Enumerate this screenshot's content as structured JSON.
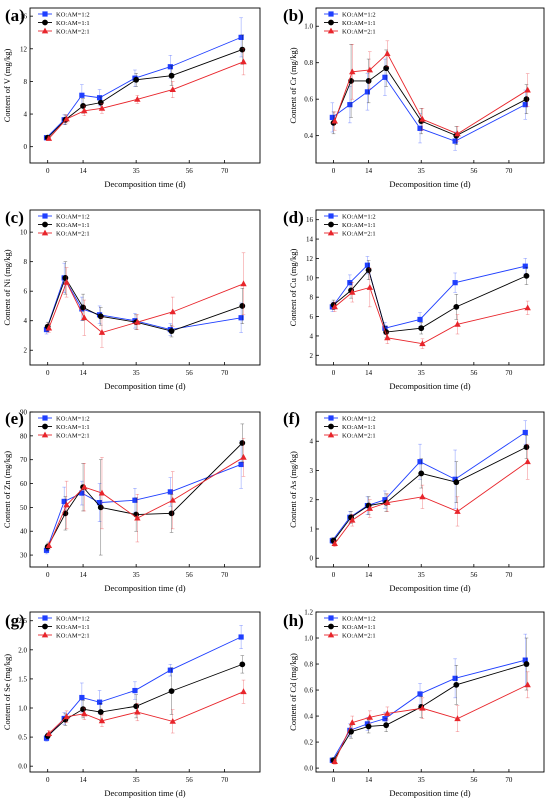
{
  "legend_labels": [
    "KO:AM=1:2",
    "KO:AM=1:1",
    "KO:AM=2:1"
  ],
  "series_colors": [
    "#1f3fff",
    "#000000",
    "#e8252b"
  ],
  "series_markers": [
    "square",
    "circle",
    "triangle"
  ],
  "chart_data": [
    {
      "panel": "(a)",
      "type": "line",
      "xlabel": "Decomposition time (d)",
      "ylabel": "Content of V (mg/kg)",
      "x": [
        0,
        7,
        14,
        21,
        35,
        49,
        77
      ],
      "xticks": [
        0,
        14,
        35,
        56,
        70
      ],
      "xlim": [
        -7,
        84
      ],
      "ylim": [
        -2,
        17
      ],
      "yticks": [
        0,
        4,
        8,
        12,
        16
      ],
      "series": [
        {
          "name": "KO:AM=1:2",
          "values": [
            1.1,
            3.3,
            6.3,
            6.0,
            8.4,
            9.8,
            13.4
          ],
          "err": [
            0.2,
            0.6,
            1.3,
            1.0,
            1.0,
            1.4,
            2.4
          ]
        },
        {
          "name": "KO:AM=1:1",
          "values": [
            1.1,
            3.3,
            5.0,
            5.4,
            8.2,
            8.7,
            11.9
          ],
          "err": [
            0.2,
            0.6,
            0.9,
            0.7,
            0.8,
            1.2,
            1.8
          ]
        },
        {
          "name": "KO:AM=2:1",
          "values": [
            1.0,
            3.4,
            4.4,
            4.7,
            5.8,
            7.0,
            10.4
          ],
          "err": [
            0.2,
            0.5,
            0.6,
            0.6,
            0.5,
            1.0,
            1.6
          ]
        }
      ]
    },
    {
      "panel": "(b)",
      "type": "line",
      "xlabel": "Decomposition time (d)",
      "ylabel": "Content of Cr (mg/kg)",
      "x": [
        0,
        7,
        14,
        21,
        35,
        49,
        77
      ],
      "xticks": [
        0,
        14,
        35,
        56,
        70
      ],
      "xlim": [
        -7,
        84
      ],
      "ylim": [
        0.25,
        1.1
      ],
      "yticks": [
        0.4,
        0.6,
        0.8,
        1.0
      ],
      "series": [
        {
          "name": "KO:AM=1:2",
          "values": [
            0.5,
            0.57,
            0.64,
            0.72,
            0.44,
            0.37,
            0.57
          ],
          "err": [
            0.08,
            0.1,
            0.1,
            0.1,
            0.08,
            0.05,
            0.08
          ]
        },
        {
          "name": "KO:AM=1:1",
          "values": [
            0.47,
            0.7,
            0.7,
            0.77,
            0.48,
            0.4,
            0.6
          ],
          "err": [
            0.06,
            0.2,
            0.12,
            0.1,
            0.07,
            0.05,
            0.08
          ]
        },
        {
          "name": "KO:AM=2:1",
          "values": [
            0.48,
            0.75,
            0.76,
            0.85,
            0.49,
            0.41,
            0.65
          ],
          "err": [
            0.05,
            0.15,
            0.1,
            0.07,
            0.06,
            0.04,
            0.09
          ]
        }
      ]
    },
    {
      "panel": "(c)",
      "type": "line",
      "xlabel": "Decomposition time (d)",
      "ylabel": "Content of Ni (mg/kg)",
      "x": [
        0,
        7,
        14,
        21,
        35,
        49,
        77
      ],
      "xticks": [
        0,
        14,
        35,
        56,
        70
      ],
      "xlim": [
        -7,
        84
      ],
      "ylim": [
        1,
        11.5
      ],
      "yticks": [
        2,
        4,
        6,
        8,
        10
      ],
      "series": [
        {
          "name": "KO:AM=1:2",
          "values": [
            3.4,
            6.9,
            4.8,
            4.4,
            4.0,
            3.4,
            4.2
          ],
          "err": [
            0.3,
            1.0,
            0.8,
            0.6,
            0.5,
            0.4,
            1.0
          ]
        },
        {
          "name": "KO:AM=1:1",
          "values": [
            3.6,
            6.9,
            4.9,
            4.3,
            3.9,
            3.3,
            5.0
          ],
          "err": [
            0.3,
            1.1,
            0.9,
            0.6,
            0.5,
            0.4,
            1.2
          ]
        },
        {
          "name": "KO:AM=2:1",
          "values": [
            3.5,
            6.6,
            4.2,
            3.2,
            3.9,
            4.6,
            6.5
          ],
          "err": [
            0.3,
            1.0,
            1.2,
            1.0,
            0.5,
            1.0,
            2.1
          ]
        }
      ]
    },
    {
      "panel": "(d)",
      "type": "line",
      "xlabel": "Decomposition time (d)",
      "ylabel": "Content of Cu (mg/kg)",
      "x": [
        0,
        7,
        14,
        21,
        35,
        49,
        77
      ],
      "xticks": [
        0,
        14,
        35,
        56,
        70
      ],
      "xlim": [
        -7,
        84
      ],
      "ylim": [
        1,
        17
      ],
      "yticks": [
        2,
        4,
        6,
        8,
        10,
        12,
        14,
        16
      ],
      "series": [
        {
          "name": "KO:AM=1:2",
          "values": [
            7.0,
            9.5,
            11.3,
            4.8,
            5.7,
            9.5,
            11.2
          ],
          "err": [
            0.5,
            0.8,
            0.9,
            0.6,
            0.7,
            1.0,
            0.8
          ]
        },
        {
          "name": "KO:AM=1:1",
          "values": [
            7.2,
            8.7,
            10.8,
            4.4,
            4.8,
            7.0,
            10.2
          ],
          "err": [
            0.5,
            0.8,
            1.0,
            0.6,
            0.6,
            1.3,
            0.9
          ]
        },
        {
          "name": "KO:AM=2:1",
          "values": [
            7.0,
            8.5,
            9.0,
            3.8,
            3.2,
            5.2,
            6.9
          ],
          "err": [
            0.5,
            1.0,
            2.0,
            0.6,
            0.5,
            1.0,
            0.7
          ]
        }
      ]
    },
    {
      "panel": "(e)",
      "type": "line",
      "xlabel": "Decomposition time (d)",
      "ylabel": "Content of Zn (mg/kg)",
      "x": [
        0,
        7,
        14,
        21,
        35,
        49,
        77
      ],
      "xticks": [
        0,
        14,
        35,
        56,
        70
      ],
      "xlim": [
        -7,
        84
      ],
      "ylim": [
        25,
        90
      ],
      "yticks": [
        30,
        40,
        50,
        60,
        70,
        80,
        90
      ],
      "series": [
        {
          "name": "KO:AM=1:2",
          "values": [
            32.0,
            52.5,
            56.0,
            52.0,
            53.0,
            56.5,
            68.0
          ],
          "err": [
            1.5,
            6.0,
            5.0,
            8.0,
            5.0,
            6.0,
            10.0
          ]
        },
        {
          "name": "KO:AM=1:1",
          "values": [
            33.5,
            47.5,
            58.5,
            50.0,
            47.0,
            47.5,
            77.0
          ],
          "err": [
            1.5,
            7.0,
            10.0,
            20.0,
            7.0,
            8.0,
            8.0
          ]
        },
        {
          "name": "KO:AM=2:1",
          "values": [
            34.0,
            51.0,
            58.5,
            56.0,
            45.5,
            53.0,
            71.0
          ],
          "err": [
            1.5,
            10.0,
            10.0,
            15.0,
            10.0,
            12.0,
            8.0
          ]
        }
      ]
    },
    {
      "panel": "(f)",
      "type": "line",
      "xlabel": "Decomposition time (d)",
      "ylabel": "Content of As (mg/kg)",
      "x": [
        0,
        7,
        14,
        21,
        35,
        49,
        77
      ],
      "xticks": [
        0,
        14,
        35,
        56,
        70
      ],
      "xlim": [
        -7,
        84
      ],
      "ylim": [
        -0.3,
        5.0
      ],
      "yticks": [
        0,
        1,
        2,
        3,
        4
      ],
      "series": [
        {
          "name": "KO:AM=1:2",
          "values": [
            0.6,
            1.4,
            1.8,
            2.0,
            3.3,
            2.7,
            4.3
          ],
          "err": [
            0.1,
            0.2,
            0.3,
            0.3,
            0.6,
            1.0,
            0.4
          ]
        },
        {
          "name": "KO:AM=1:1",
          "values": [
            0.6,
            1.4,
            1.8,
            1.9,
            2.9,
            2.6,
            3.8
          ],
          "err": [
            0.1,
            0.2,
            0.3,
            0.3,
            0.5,
            0.7,
            0.4
          ]
        },
        {
          "name": "KO:AM=2:1",
          "values": [
            0.5,
            1.3,
            1.7,
            1.9,
            2.1,
            1.6,
            3.3
          ],
          "err": [
            0.1,
            0.2,
            0.3,
            0.3,
            0.4,
            0.5,
            0.6
          ]
        }
      ]
    },
    {
      "panel": "(g)",
      "type": "line",
      "xlabel": "Decomposition time (d)",
      "ylabel": "Content of Se (mg/kg)",
      "x": [
        0,
        7,
        14,
        21,
        35,
        49,
        77
      ],
      "xticks": [
        0,
        14,
        35,
        56,
        70
      ],
      "xlim": [
        -7,
        84
      ],
      "ylim": [
        -0.1,
        2.65
      ],
      "yticks": [
        0.0,
        0.5,
        1.0,
        1.5,
        2.0,
        2.5
      ],
      "series": [
        {
          "name": "KO:AM=1:2",
          "values": [
            0.48,
            0.82,
            1.18,
            1.1,
            1.3,
            1.65,
            2.22
          ],
          "err": [
            0.05,
            0.1,
            0.25,
            0.2,
            0.15,
            0.1,
            0.2
          ]
        },
        {
          "name": "KO:AM=1:1",
          "values": [
            0.52,
            0.8,
            0.98,
            0.93,
            1.03,
            1.29,
            1.75
          ],
          "err": [
            0.05,
            0.1,
            0.15,
            0.15,
            0.2,
            0.4,
            0.15
          ]
        },
        {
          "name": "KO:AM=2:1",
          "values": [
            0.56,
            0.85,
            0.9,
            0.78,
            0.93,
            0.77,
            1.28
          ],
          "err": [
            0.05,
            0.1,
            0.1,
            0.1,
            0.15,
            0.2,
            0.2
          ]
        }
      ]
    },
    {
      "panel": "(h)",
      "type": "line",
      "xlabel": "Decomposition time (d)",
      "ylabel": "Content of Cd (mg/kg)",
      "x": [
        0,
        7,
        14,
        21,
        35,
        49,
        77
      ],
      "xticks": [
        0,
        14,
        35,
        56,
        70
      ],
      "xlim": [
        -7,
        84
      ],
      "ylim": [
        -0.03,
        1.2
      ],
      "yticks": [
        0.0,
        0.2,
        0.4,
        0.6,
        0.8,
        1.0,
        1.2
      ],
      "series": [
        {
          "name": "KO:AM=1:2",
          "values": [
            0.06,
            0.29,
            0.34,
            0.38,
            0.57,
            0.69,
            0.83
          ],
          "err": [
            0.02,
            0.05,
            0.05,
            0.05,
            0.08,
            0.15,
            0.2
          ]
        },
        {
          "name": "KO:AM=1:1",
          "values": [
            0.06,
            0.28,
            0.32,
            0.33,
            0.47,
            0.64,
            0.8
          ],
          "err": [
            0.02,
            0.05,
            0.05,
            0.05,
            0.08,
            0.15,
            0.2
          ]
        },
        {
          "name": "KO:AM=2:1",
          "values": [
            0.05,
            0.35,
            0.39,
            0.42,
            0.46,
            0.38,
            0.64
          ],
          "err": [
            0.02,
            0.05,
            0.05,
            0.05,
            0.08,
            0.1,
            0.1
          ]
        }
      ]
    }
  ]
}
